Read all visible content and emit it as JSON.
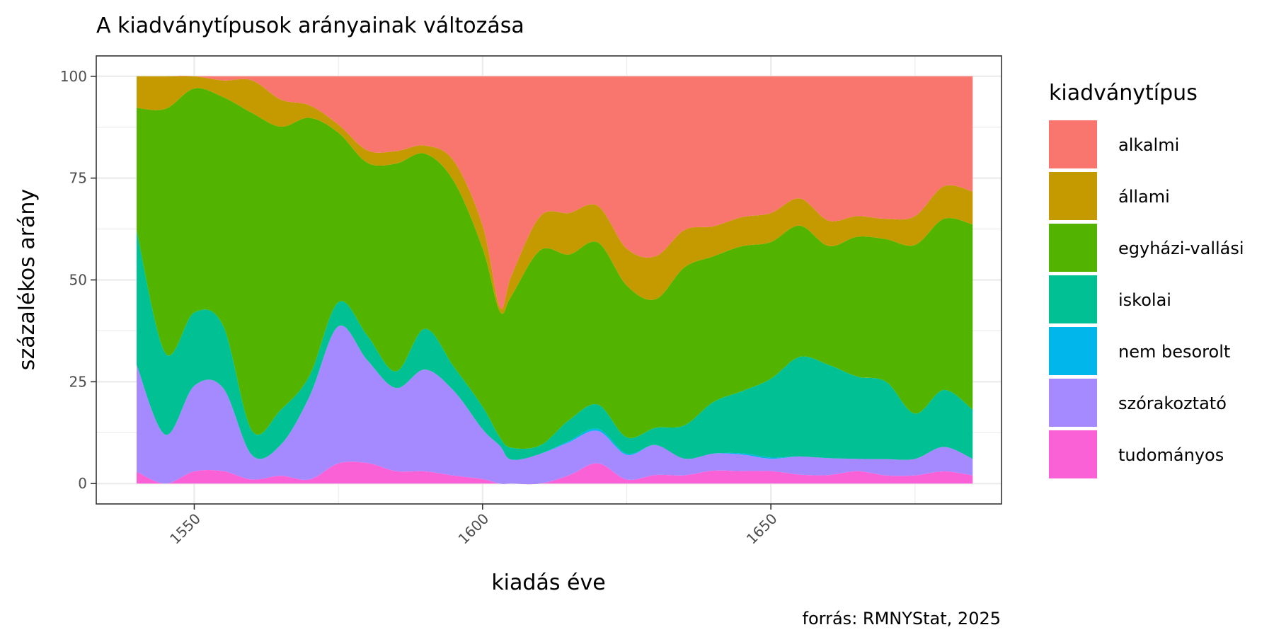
{
  "chart_data": {
    "type": "area",
    "stacked": "percent",
    "title": "A kiadványtípusok arányainak változása",
    "xlabel": "kiadás éve",
    "ylabel": "százalékos arány",
    "caption": "forrás: RMNYStat, 2025",
    "xlim": [
      1533,
      1690
    ],
    "ylim": [
      -5,
      105
    ],
    "x_ticks": [
      1550,
      1600,
      1650
    ],
    "x_tick_labels": [
      "1550",
      "1600",
      "1650"
    ],
    "y_ticks": [
      0,
      25,
      50,
      75,
      100
    ],
    "y_tick_labels": [
      "0",
      "25",
      "50",
      "75",
      "100"
    ],
    "grid": true,
    "legend": {
      "title": "kiadványtípus",
      "position": "right"
    },
    "x": [
      1540,
      1545,
      1550,
      1555,
      1560,
      1565,
      1570,
      1575,
      1580,
      1585,
      1590,
      1595,
      1600,
      1603,
      1605,
      1610,
      1615,
      1620,
      1625,
      1630,
      1635,
      1640,
      1645,
      1650,
      1655,
      1660,
      1665,
      1670,
      1675,
      1680,
      1685
    ],
    "stack_order_bottom_to_top": [
      "tudományos",
      "szórakoztató",
      "nem besorolt",
      "iskolai",
      "egyházi-vallási",
      "állami",
      "alkalmi"
    ],
    "series": [
      {
        "name": "alkalmi",
        "color": "#F8766D",
        "values": [
          0,
          0,
          0,
          1,
          1,
          6,
          7,
          12,
          18,
          18,
          17,
          21,
          33,
          55,
          50,
          33,
          33,
          32,
          42,
          42,
          37,
          35,
          34,
          33,
          27,
          34,
          34,
          35,
          34,
          27,
          28
        ]
      },
      {
        "name": "állami",
        "color": "#C49A00",
        "values": [
          8,
          8,
          3,
          4,
          8,
          7,
          3,
          2,
          3,
          3,
          2,
          5,
          5,
          1,
          5,
          8,
          10,
          9,
          9,
          10,
          9,
          7,
          7,
          7,
          6,
          6,
          5,
          5,
          7,
          8,
          8
        ]
      },
      {
        "name": "egyházi-vallási",
        "color": "#53B400",
        "values": [
          31,
          60,
          55,
          55,
          78,
          73,
          62,
          42,
          42,
          50,
          43,
          46,
          35,
          30,
          38,
          46,
          40,
          40,
          37,
          30,
          38,
          34,
          35,
          33,
          29,
          28,
          34,
          35,
          41,
          42,
          45
        ]
      },
      {
        "name": "iskolai",
        "color": "#00C094",
        "values": [
          34,
          20,
          18,
          15,
          6,
          9,
          5,
          6,
          6,
          4,
          10,
          6,
          5,
          2,
          3,
          2,
          5,
          6,
          4,
          4,
          8,
          12,
          15,
          19,
          22,
          22,
          20,
          19,
          11,
          14,
          12
        ]
      },
      {
        "name": "nem besorolt",
        "color": "#00B6EB",
        "values": [
          0,
          0,
          0,
          0,
          0,
          0,
          0,
          0,
          0,
          0,
          0,
          0,
          0,
          0,
          0,
          0,
          0.3,
          0.5,
          0.3,
          0,
          0,
          0,
          0.3,
          0.3,
          0,
          0,
          0,
          0,
          0,
          0,
          0
        ]
      },
      {
        "name": "szórakoztató",
        "color": "#A58AFF",
        "values": [
          27,
          12,
          21,
          20,
          6,
          8,
          20,
          34,
          25,
          20,
          25,
          21,
          11,
          9,
          6,
          7,
          8,
          8,
          6,
          7,
          4,
          4,
          4,
          3,
          4,
          4,
          3,
          4,
          4,
          6,
          4
        ]
      },
      {
        "name": "tudományos",
        "color": "#FB61D7",
        "values": [
          3,
          0,
          3,
          3,
          1,
          2,
          1,
          5,
          5,
          3,
          3,
          2,
          1,
          0,
          0,
          0,
          2,
          5,
          1,
          2,
          2,
          3,
          3,
          3,
          2,
          2,
          3,
          2,
          2,
          3,
          2
        ]
      }
    ],
    "legend_order": [
      "alkalmi",
      "állami",
      "egyházi-vallási",
      "iskolai",
      "nem besorolt",
      "szórakoztató",
      "tudományos"
    ]
  }
}
